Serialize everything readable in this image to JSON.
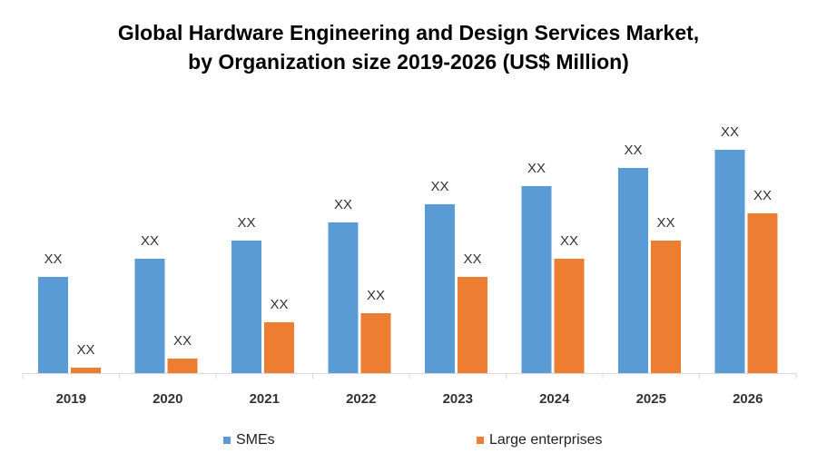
{
  "chart_data": {
    "type": "bar",
    "title": "Global Hardware Engineering and Design Services Market,",
    "subtitle": "by Organization size 2019-2026 (US$ Million)",
    "categories": [
      "2019",
      "2020",
      "2021",
      "2022",
      "2023",
      "2024",
      "2025",
      "2026"
    ],
    "series": [
      {
        "name": "SMEs",
        "color": "#5B9BD5",
        "values": [
          106,
          126,
          146,
          166,
          186,
          206,
          226,
          246
        ],
        "labels": [
          "XX",
          "XX",
          "XX",
          "XX",
          "XX",
          "XX",
          "XX",
          "XX"
        ]
      },
      {
        "name": "Large enterprises",
        "color": "#ED7D31",
        "values": [
          6,
          16,
          56,
          66,
          106,
          126,
          146,
          176
        ],
        "labels": [
          "XX",
          "XX",
          "XX",
          "XX",
          "XX",
          "XX",
          "XX",
          "XX"
        ]
      }
    ],
    "ylim": [
      0,
      250
    ],
    "y_axis_shown": false,
    "grid": false,
    "legend": "bottom",
    "xlabel": "",
    "ylabel": ""
  }
}
